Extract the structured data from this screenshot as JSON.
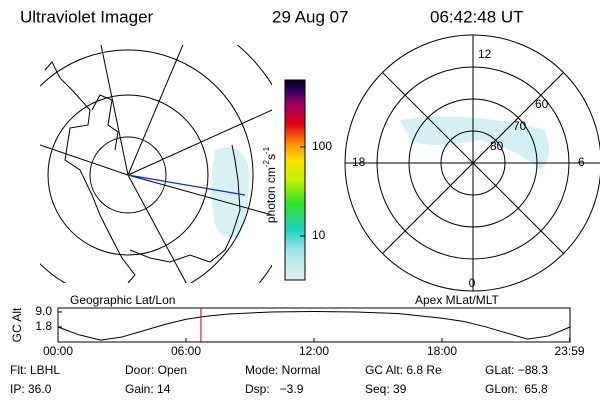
{
  "header": {
    "title": "Ultraviolet Imager",
    "date": "29 Aug 07",
    "time": "06:42:48 UT"
  },
  "left_panel": {
    "label": "Geographic Lat/Lon"
  },
  "right_panel": {
    "label": "Apex MLat/MLT",
    "mlt_labels": [
      "12",
      "18",
      "6",
      "0"
    ],
    "mlat_labels": [
      "80",
      "70",
      "60"
    ]
  },
  "colorbar": {
    "label": "photon cm",
    "exp1": "-2",
    "unit2": "s",
    "exp2": "-1",
    "range": [
      3.2,
      566
    ],
    "log": true,
    "ticks": [
      10,
      100
    ]
  },
  "altitude": {
    "label": "GC Alt",
    "xlim": [
      0,
      24
    ],
    "ylim": [
      -5.4,
      10.9
    ],
    "xticks": [
      {
        "value": 0,
        "label": "00:00"
      },
      {
        "value": 6,
        "label": "06:00"
      },
      {
        "value": 12,
        "label": "12:00"
      },
      {
        "value": 18,
        "label": "18:00"
      },
      {
        "value": 23.98,
        "label": "23:59"
      }
    ],
    "yticks": [
      {
        "value": 9.0,
        "label": "9.0"
      },
      1.8
    ],
    "x": [
      0,
      1,
      2,
      3,
      4,
      5,
      6,
      7,
      8,
      10,
      12,
      14,
      16,
      18,
      19,
      20,
      21,
      22,
      23,
      24
    ],
    "values": [
      1.8,
      -2,
      -4.5,
      -3,
      0,
      3,
      5.5,
      7,
      8,
      9,
      9.2,
      9,
      8.2,
      6,
      4.5,
      2,
      -1,
      -4,
      -2.5,
      1.8
    ],
    "current": 6.7
  },
  "footer": {
    "rows": [
      [
        "Flt: LBHL",
        "Door: Open",
        "Mode: Normal",
        "GC Alt: 6.8 Re",
        "GLat: −88.3"
      ],
      [
        "IP: 36.0",
        "Gain: 14",
        "Dsp:   −3.9",
        "Seq: 39",
        "GLon:  65.8"
      ]
    ]
  }
}
